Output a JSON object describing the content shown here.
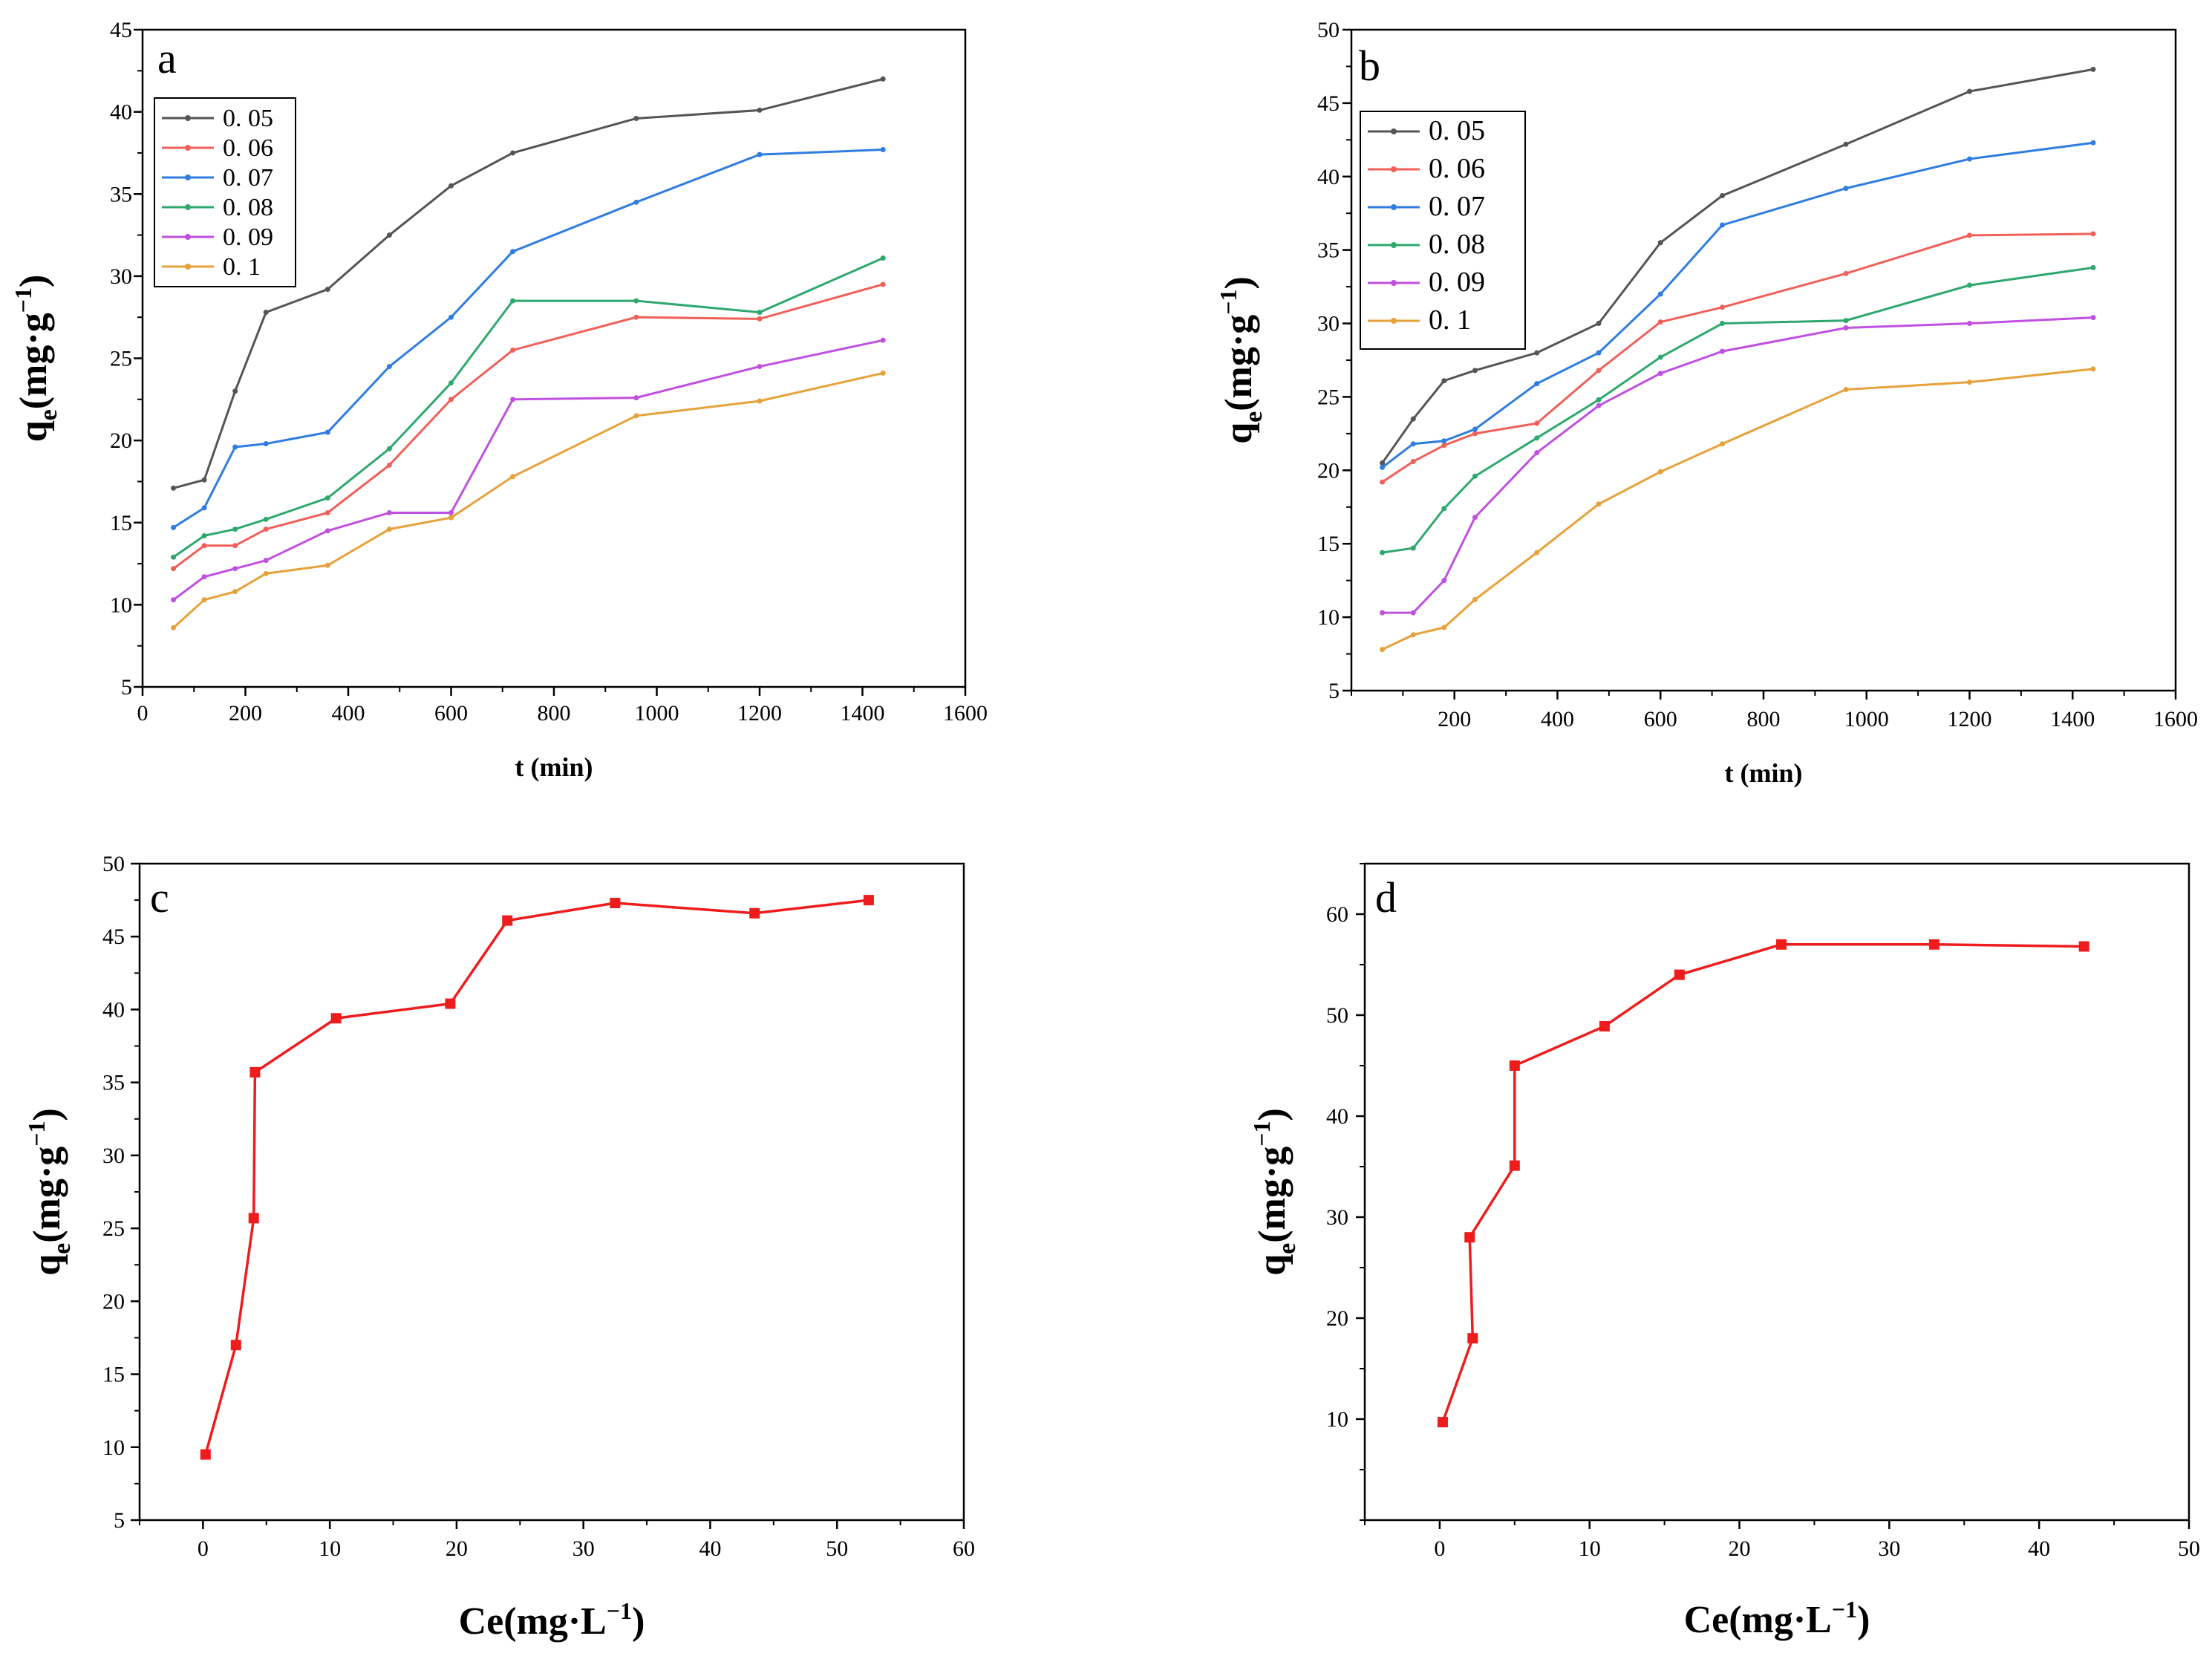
{
  "chart_data": [
    {
      "panel": "a",
      "type": "line",
      "xlabel": "t (min)",
      "ylabel": "qe (mg·g−1)",
      "ylabel_parts": {
        "main": "q",
        "sub": "e",
        "unit": "(mg·g",
        "exp": "−1",
        "close": ")"
      },
      "xlim": [
        0,
        1600
      ],
      "ylim": [
        5,
        45
      ],
      "xticks": [
        "0",
        "200",
        "400",
        "600",
        "800",
        "1000",
        "1200",
        "1400",
        "1600"
      ],
      "yticks": [
        "5",
        "10",
        "15",
        "20",
        "25",
        "30",
        "35",
        "40",
        "45"
      ],
      "legend_position": "top-left",
      "x": [
        60,
        120,
        180,
        240,
        360,
        480,
        600,
        720,
        960,
        1200,
        1440
      ],
      "series": [
        {
          "name": "0. 05",
          "color": "#555555",
          "values": [
            17.1,
            17.6,
            23.0,
            27.8,
            29.2,
            32.5,
            35.5,
            37.5,
            39.6,
            40.1,
            42.0
          ]
        },
        {
          "name": "0. 06",
          "color": "#f0605a",
          "values": [
            12.2,
            13.6,
            13.6,
            14.6,
            15.6,
            18.5,
            22.5,
            25.5,
            27.5,
            27.4,
            29.5
          ]
        },
        {
          "name": "0. 07",
          "color": "#2f7de0",
          "values": [
            14.7,
            15.9,
            19.6,
            19.8,
            20.5,
            24.5,
            27.5,
            31.5,
            34.5,
            37.4,
            37.7
          ]
        },
        {
          "name": "0. 08",
          "color": "#2ea86e",
          "values": [
            12.9,
            14.2,
            14.6,
            15.2,
            16.5,
            19.5,
            23.5,
            28.5,
            28.5,
            27.8,
            31.1
          ]
        },
        {
          "name": "0. 09",
          "color": "#c050e0",
          "values": [
            10.3,
            11.7,
            12.2,
            12.7,
            14.5,
            15.6,
            15.6,
            22.5,
            22.6,
            24.5,
            26.1
          ]
        },
        {
          "name": "0. 1",
          "color": "#e6a23a",
          "values": [
            8.6,
            10.3,
            10.8,
            11.9,
            12.4,
            14.6,
            15.3,
            17.8,
            21.5,
            22.4,
            24.1
          ]
        }
      ]
    },
    {
      "panel": "b",
      "type": "line",
      "xlabel": "t (min)",
      "ylabel": "qe (mg·g−1)",
      "ylabel_parts": {
        "main": "q",
        "sub": "e",
        "unit": "(mg·g",
        "exp": "−1",
        "close": ")"
      },
      "xlim": [
        0,
        1600
      ],
      "ylim": [
        5,
        50
      ],
      "xticks": [
        "200",
        "400",
        "600",
        "800",
        "1000",
        "1200",
        "1400",
        "1600"
      ],
      "yticks": [
        "5",
        "10",
        "15",
        "20",
        "25",
        "30",
        "35",
        "40",
        "45",
        "50"
      ],
      "legend_position": "top-left",
      "x": [
        60,
        120,
        180,
        240,
        360,
        480,
        600,
        720,
        960,
        1200,
        1440
      ],
      "series": [
        {
          "name": "0. 05",
          "color": "#555555",
          "values": [
            20.5,
            23.5,
            26.1,
            26.8,
            28.0,
            30.0,
            35.5,
            38.7,
            42.2,
            45.8,
            47.3
          ]
        },
        {
          "name": "0. 06",
          "color": "#f0605a",
          "values": [
            19.2,
            20.6,
            21.7,
            22.5,
            23.2,
            26.8,
            30.1,
            31.1,
            33.4,
            36.0,
            36.1
          ]
        },
        {
          "name": "0. 07",
          "color": "#2f7de0",
          "values": [
            20.2,
            21.8,
            22.0,
            22.8,
            25.9,
            28.0,
            32.0,
            36.7,
            39.2,
            41.2,
            42.3
          ]
        },
        {
          "name": "0. 08",
          "color": "#2ea86e",
          "values": [
            14.4,
            14.7,
            17.4,
            19.6,
            22.2,
            24.8,
            27.7,
            30.0,
            30.2,
            32.6,
            33.8
          ]
        },
        {
          "name": "0. 09",
          "color": "#c050e0",
          "values": [
            10.3,
            10.3,
            12.5,
            16.8,
            21.2,
            24.4,
            26.6,
            28.1,
            29.7,
            30.0,
            30.4
          ]
        },
        {
          "name": "0. 1",
          "color": "#e6a23a",
          "values": [
            7.8,
            8.8,
            9.3,
            11.2,
            14.4,
            17.7,
            19.9,
            21.8,
            25.5,
            26.0,
            26.9
          ]
        }
      ]
    },
    {
      "panel": "c",
      "type": "line",
      "xlabel": "Ce(mg·L−1)",
      "xlabel_parts": {
        "main": "Ce(mg·L",
        "exp": "−1",
        "close": ")"
      },
      "ylabel": "qe(mg·g−1)",
      "ylabel_parts": {
        "main": "q",
        "sub": "e",
        "unit": "(mg·g",
        "exp": "−1",
        "close": ")"
      },
      "xlim": [
        -5,
        60
      ],
      "ylim": [
        5,
        50
      ],
      "xticks": [
        "0",
        "10",
        "20",
        "30",
        "40",
        "50",
        "60"
      ],
      "yticks": [
        "5",
        "10",
        "15",
        "20",
        "25",
        "30",
        "35",
        "40",
        "45",
        "50"
      ],
      "series": [
        {
          "name": "c",
          "color": "#ee1c1c",
          "x": [
            0.2,
            2.6,
            4.0,
            4.1,
            10.5,
            19.5,
            24.0,
            32.5,
            43.5,
            52.5
          ],
          "values": [
            9.5,
            17.0,
            25.7,
            35.7,
            39.4,
            40.4,
            46.1,
            47.3,
            46.6,
            47.5
          ]
        }
      ]
    },
    {
      "panel": "d",
      "type": "line",
      "xlabel": "Ce(mg·L−1)",
      "xlabel_parts": {
        "main": "Ce(mg·L",
        "exp": "−1",
        "close": ")"
      },
      "ylabel": "qe(mg·g−1)",
      "ylabel_parts": {
        "main": "q",
        "sub": "e",
        "unit": "(mg·g",
        "exp": "−1",
        "close": ")"
      },
      "xlim": [
        -5,
        50
      ],
      "ylim": [
        0,
        65
      ],
      "xticks": [
        "0",
        "10",
        "20",
        "30",
        "40",
        "50"
      ],
      "yticks": [
        "10",
        "20",
        "30",
        "40",
        "50",
        "60"
      ],
      "series": [
        {
          "name": "d",
          "color": "#ee1c1c",
          "x": [
            0.2,
            2.2,
            2.0,
            5.0,
            5.0,
            11.0,
            16.0,
            22.8,
            33.0,
            43.0
          ],
          "values": [
            9.7,
            18.0,
            28.0,
            35.1,
            45.0,
            48.9,
            54.0,
            57.0,
            57.0,
            56.8
          ]
        }
      ]
    }
  ]
}
